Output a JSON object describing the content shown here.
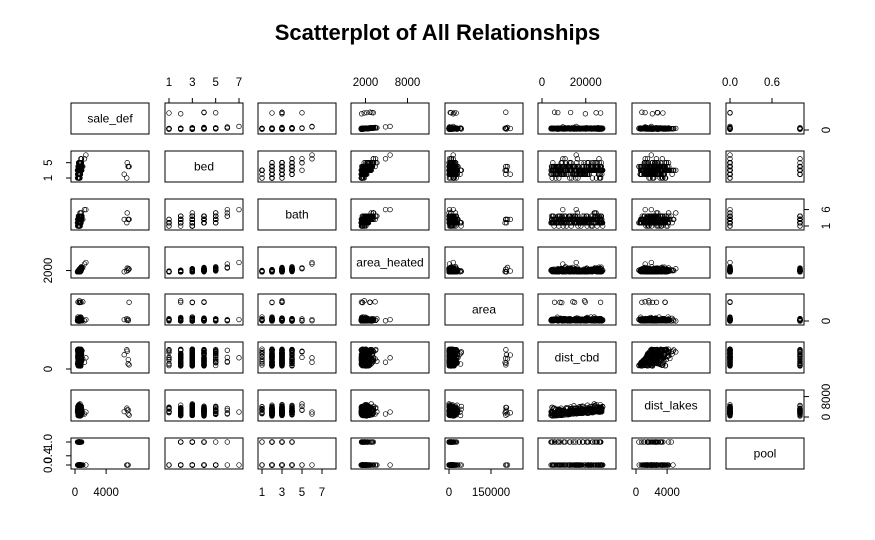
{
  "chart_data": {
    "type": "scatter",
    "subtype": "scatterplot-matrix",
    "title": "Scatterplot of All Relationships",
    "variables": [
      "sale_def",
      "bed",
      "bath",
      "area_heated",
      "area",
      "dist_cbd",
      "dist_lakes",
      "pool"
    ],
    "ranges": {
      "sale_def": [
        0,
        9000
      ],
      "bed": [
        1,
        7
      ],
      "bath": [
        1,
        8
      ],
      "area_heated": [
        500,
        10500
      ],
      "area": [
        0,
        250000
      ],
      "dist_cbd": [
        0,
        32000
      ],
      "dist_lakes": [
        0,
        9000
      ],
      "pool": [
        0,
        1
      ]
    },
    "axis_ticks": {
      "top": [
        {
          "variable": "bed",
          "labels": [
            "1",
            "3",
            "5",
            "7"
          ]
        },
        {
          "variable": "area_heated",
          "labels": [
            "2000",
            "8000"
          ]
        },
        {
          "variable": "dist_cbd",
          "labels": [
            "0",
            "20000"
          ]
        },
        {
          "variable": "pool",
          "labels": [
            "0.0",
            "0.6"
          ]
        }
      ],
      "bottom": [
        {
          "variable": "sale_def",
          "labels": [
            "0",
            "4000"
          ]
        },
        {
          "variable": "bath",
          "labels": [
            "1",
            "3",
            "5",
            "7"
          ]
        },
        {
          "variable": "area",
          "labels": [
            "0",
            "150000"
          ]
        },
        {
          "variable": "dist_lakes",
          "labels": [
            "0",
            "4000"
          ]
        }
      ],
      "left": [
        {
          "variable": "bed",
          "labels": [
            "1",
            "5"
          ]
        },
        {
          "variable": "area_heated",
          "labels": [
            "2000"
          ]
        },
        {
          "variable": "dist_cbd",
          "labels": [
            "0"
          ]
        },
        {
          "variable": "pool",
          "labels": [
            "0.0",
            "0.4",
            "1.0"
          ]
        }
      ],
      "right": [
        {
          "variable": "sale_def",
          "labels": [
            "0"
          ]
        },
        {
          "variable": "bath",
          "labels": [
            "1",
            "6"
          ]
        },
        {
          "variable": "area",
          "labels": [
            "0"
          ]
        },
        {
          "variable": "dist_lakes",
          "labels": [
            "0",
            "8000"
          ]
        }
      ]
    },
    "marker": "open-circle",
    "grid": false,
    "legend": "none",
    "point_color": "#000000"
  }
}
